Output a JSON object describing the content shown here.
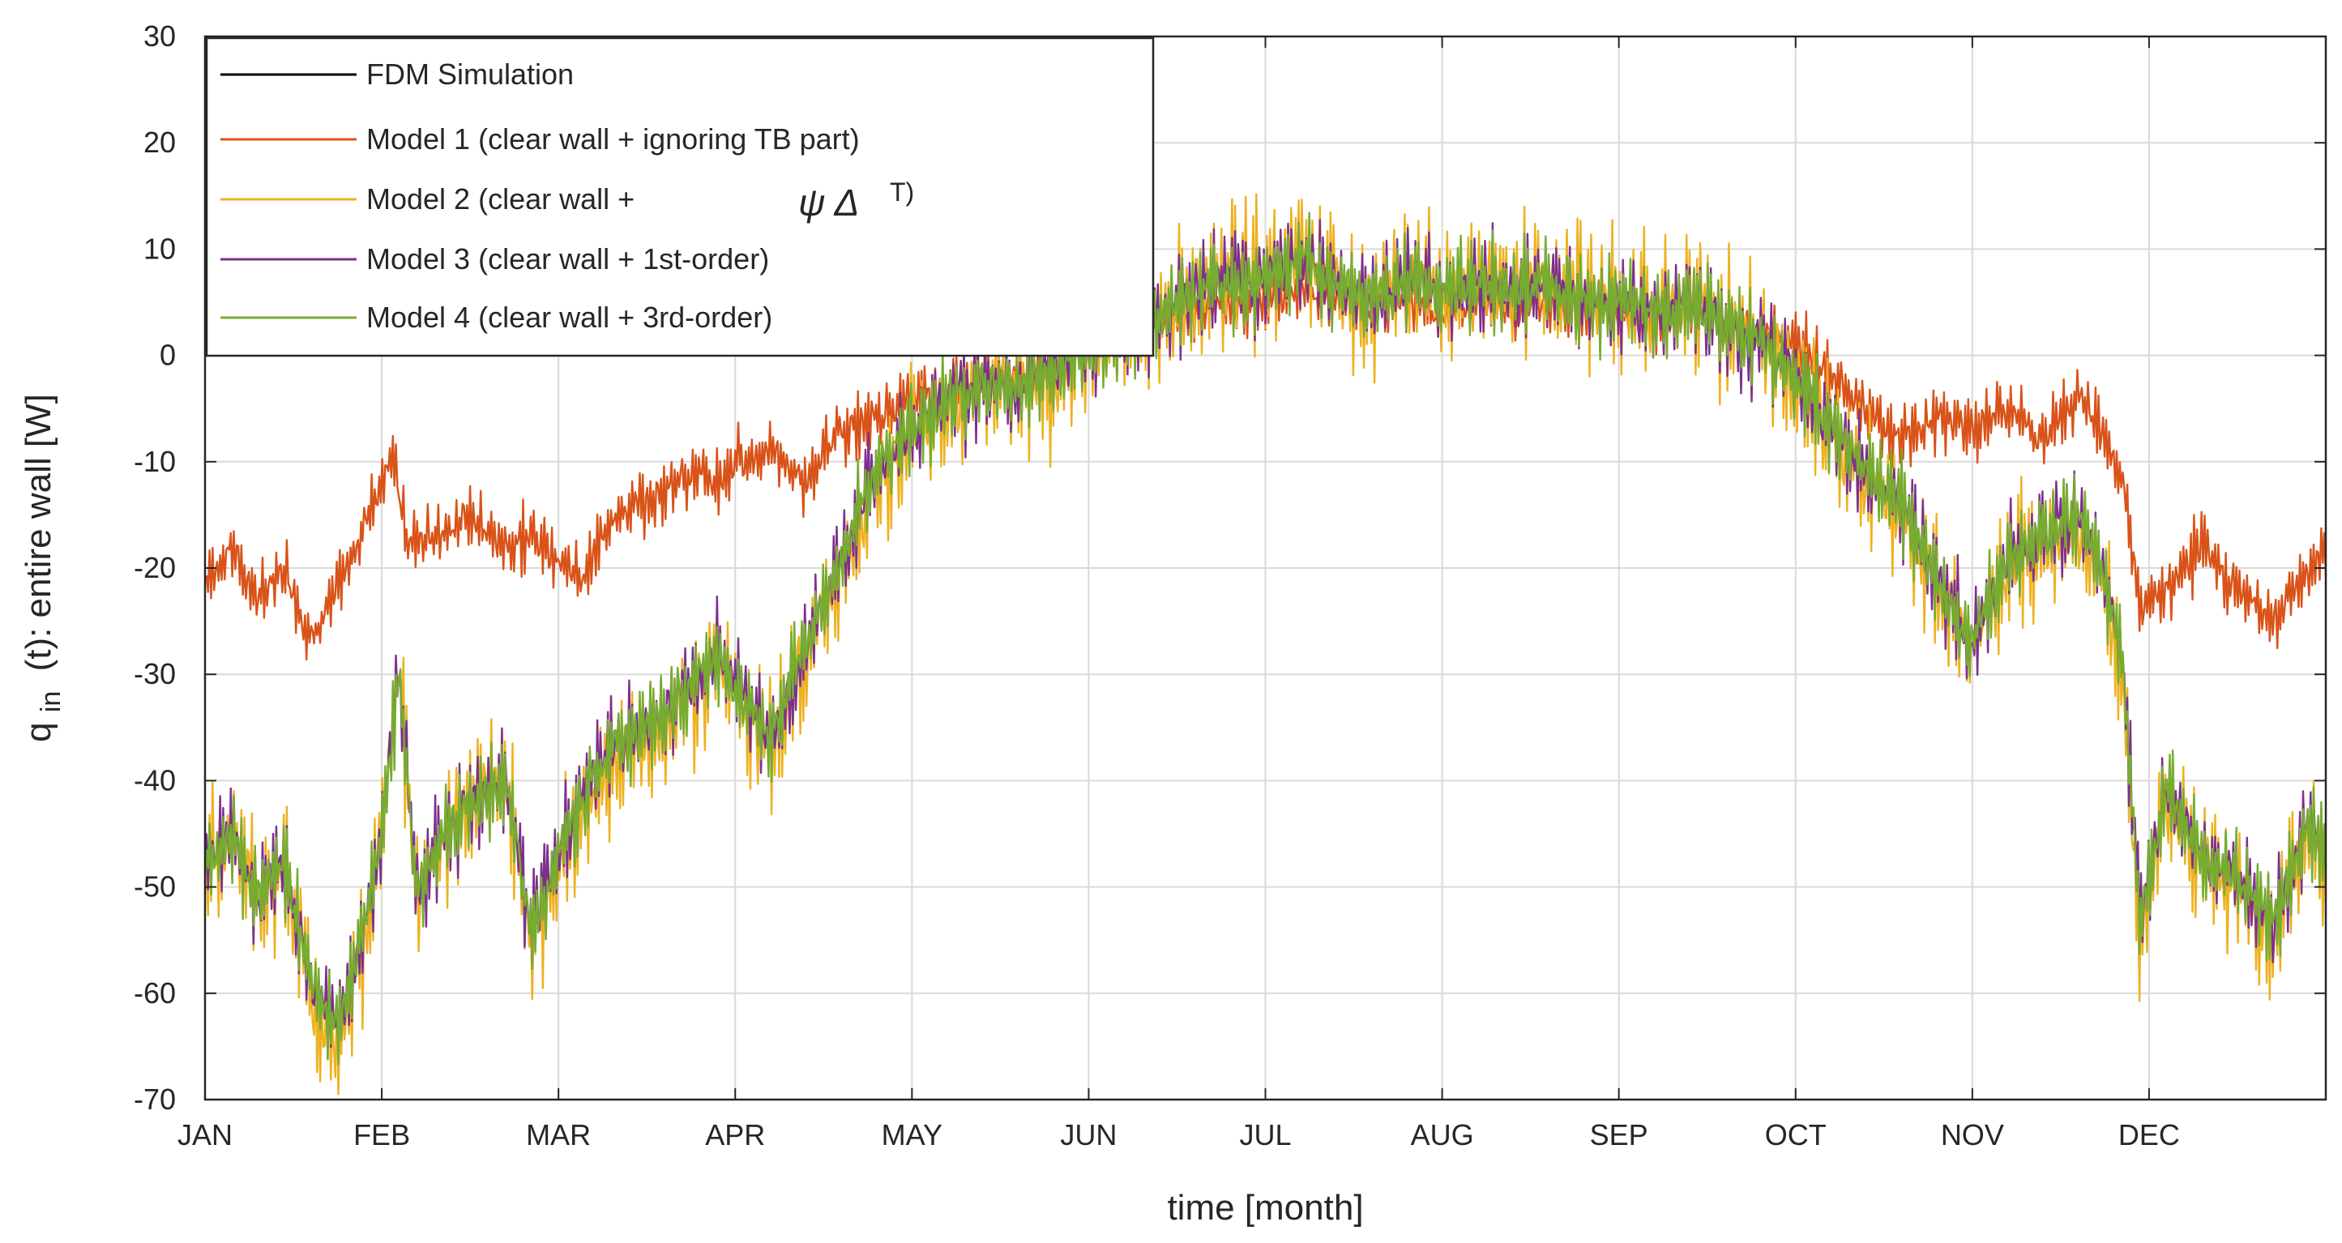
{
  "chart_data": {
    "type": "line",
    "xlabel": "time [month]",
    "ylabel": {
      "prefix": "q",
      "subscript": "in",
      "suffix": "(t): entire wall [W]"
    },
    "ylim": [
      -70,
      30
    ],
    "yticks": [
      30,
      20,
      10,
      0,
      -10,
      -20,
      -30,
      -40,
      -50,
      -60,
      -70
    ],
    "xlim": [
      0,
      12
    ],
    "xticks": [
      {
        "label": "JAN",
        "x": 0
      },
      {
        "label": "FEB",
        "x": 1
      },
      {
        "label": "MAR",
        "x": 2
      },
      {
        "label": "APR",
        "x": 3
      },
      {
        "label": "MAY",
        "x": 4
      },
      {
        "label": "JUN",
        "x": 5
      },
      {
        "label": "JUL",
        "x": 6
      },
      {
        "label": "AUG",
        "x": 7
      },
      {
        "label": "SEP",
        "x": 8
      },
      {
        "label": "OCT",
        "x": 9
      },
      {
        "label": "NOV",
        "x": 10
      },
      {
        "label": "DEC",
        "x": 11
      }
    ],
    "grid": true,
    "legend_position": "top-left",
    "legend": [
      {
        "label": "FDM Simulation",
        "color": "#000000"
      },
      {
        "label": "Model 1 (clear wall + ignoring TB part)",
        "color": "#D95319"
      },
      {
        "label": "Model 2 (clear wall +",
        "color": "#EDB120",
        "math": "ψ Δ",
        "sup": "T)"
      },
      {
        "label": "Model 3 (clear wall + 1st-order)",
        "color": "#7E2F8E"
      },
      {
        "label": "Model 4 (clear wall + 3rd-order)",
        "color": "#77AC30"
      }
    ],
    "series": [
      {
        "name": "Model 1 (clear wall + ignoring TB part)",
        "color": "#D95319",
        "x": [
          0,
          0.15,
          0.3,
          0.45,
          0.6,
          0.75,
          0.9,
          1.0,
          1.05,
          1.15,
          1.3,
          1.5,
          1.7,
          1.85,
          2.0,
          2.15,
          2.3,
          2.5,
          2.7,
          2.9,
          3.0,
          3.2,
          3.4,
          3.6,
          3.8,
          4.0,
          4.2,
          4.4,
          4.6,
          4.8,
          5.0,
          5.2,
          5.4,
          5.6,
          5.8,
          6.0,
          6.2,
          6.4,
          6.6,
          6.8,
          7.0,
          7.2,
          7.4,
          7.6,
          7.8,
          8.0,
          8.2,
          8.4,
          8.6,
          8.8,
          9.0,
          9.2,
          9.4,
          9.6,
          9.8,
          10.0,
          10.2,
          10.4,
          10.5,
          10.6,
          10.75,
          10.85,
          10.95,
          11.1,
          11.3,
          11.5,
          11.7,
          11.9,
          12.0
        ],
        "y": [
          -21,
          -18,
          -23,
          -20,
          -27,
          -22,
          -16,
          -12,
          -9,
          -18,
          -17,
          -15,
          -18,
          -17,
          -19,
          -21,
          -15,
          -14,
          -11,
          -12,
          -10,
          -9,
          -12,
          -7,
          -6,
          -4,
          -3,
          -2,
          -2,
          -1,
          1,
          2,
          3,
          4,
          5,
          5,
          6,
          5,
          4,
          5,
          4,
          5,
          4,
          5,
          4,
          4,
          3,
          4,
          3,
          2,
          1,
          -2,
          -5,
          -8,
          -6,
          -7,
          -5,
          -8,
          -6,
          -4,
          -7,
          -12,
          -24,
          -22,
          -18,
          -22,
          -25,
          -20,
          -19
        ]
      },
      {
        "name": "Model 2 (clear wall + ψ ΔT)",
        "color": "#EDB120",
        "x": [
          0,
          0.15,
          0.3,
          0.45,
          0.6,
          0.75,
          0.9,
          1.0,
          1.1,
          1.2,
          1.35,
          1.5,
          1.7,
          1.85,
          2.0,
          2.15,
          2.3,
          2.5,
          2.7,
          2.9,
          3.0,
          3.2,
          3.4,
          3.6,
          3.8,
          4.0,
          4.2,
          4.4,
          4.6,
          4.8,
          5.0,
          5.2,
          5.4,
          5.6,
          5.8,
          6.0,
          6.2,
          6.4,
          6.6,
          6.8,
          7.0,
          7.2,
          7.4,
          7.6,
          7.8,
          8.0,
          8.2,
          8.4,
          8.6,
          8.8,
          9.0,
          9.2,
          9.4,
          9.6,
          9.8,
          10.0,
          10.2,
          10.4,
          10.6,
          10.75,
          10.85,
          10.95,
          11.1,
          11.3,
          11.5,
          11.7,
          11.9,
          12.0
        ],
        "y": [
          -48,
          -45,
          -52,
          -48,
          -60,
          -65,
          -55,
          -45,
          -30,
          -52,
          -45,
          -42,
          -40,
          -55,
          -48,
          -42,
          -38,
          -36,
          -33,
          -28,
          -32,
          -37,
          -28,
          -20,
          -12,
          -8,
          -5,
          -3,
          -4,
          -2,
          1,
          2,
          4,
          6,
          8,
          8,
          10,
          7,
          5,
          8,
          6,
          7,
          6,
          7,
          6,
          5,
          4,
          6,
          3,
          1,
          -2,
          -8,
          -12,
          -15,
          -22,
          -28,
          -20,
          -18,
          -16,
          -22,
          -30,
          -55,
          -42,
          -48,
          -50,
          -55,
          -45,
          -48
        ]
      },
      {
        "name": "Model 3 (clear wall + 1st-order)",
        "color": "#7E2F8E",
        "x": [
          0,
          0.15,
          0.3,
          0.45,
          0.6,
          0.75,
          0.9,
          1.0,
          1.1,
          1.2,
          1.35,
          1.5,
          1.7,
          1.85,
          2.0,
          2.15,
          2.3,
          2.5,
          2.7,
          2.9,
          3.0,
          3.2,
          3.4,
          3.6,
          3.8,
          4.0,
          4.2,
          4.4,
          4.6,
          4.8,
          5.0,
          5.2,
          5.4,
          5.6,
          5.8,
          6.0,
          6.2,
          6.4,
          6.6,
          6.8,
          7.0,
          7.2,
          7.4,
          7.6,
          7.8,
          8.0,
          8.2,
          8.4,
          8.6,
          8.8,
          9.0,
          9.2,
          9.4,
          9.6,
          9.8,
          10.0,
          10.2,
          10.4,
          10.6,
          10.75,
          10.85,
          10.95,
          11.1,
          11.3,
          11.5,
          11.7,
          11.9,
          12.0
        ],
        "y": [
          -48,
          -45,
          -51,
          -48,
          -59,
          -63,
          -54,
          -45,
          -30,
          -51,
          -45,
          -42,
          -40,
          -54,
          -47,
          -41,
          -37,
          -35,
          -32,
          -28,
          -31,
          -36,
          -27,
          -19,
          -11,
          -7,
          -4,
          -3,
          -3,
          -1,
          1,
          2,
          4,
          6,
          7,
          7,
          9,
          7,
          5,
          7,
          6,
          7,
          6,
          7,
          5,
          5,
          4,
          5,
          3,
          1,
          -2,
          -7,
          -11,
          -14,
          -21,
          -27,
          -19,
          -17,
          -15,
          -21,
          -29,
          -53,
          -41,
          -47,
          -49,
          -54,
          -44,
          -47
        ]
      },
      {
        "name": "Model 4 (clear wall + 3rd-order)",
        "color": "#77AC30",
        "x": [
          0,
          0.15,
          0.3,
          0.45,
          0.6,
          0.75,
          0.9,
          1.0,
          1.1,
          1.2,
          1.35,
          1.5,
          1.7,
          1.85,
          2.0,
          2.15,
          2.3,
          2.5,
          2.7,
          2.9,
          3.0,
          3.2,
          3.4,
          3.6,
          3.8,
          4.0,
          4.2,
          4.4,
          4.6,
          4.8,
          5.0,
          5.2,
          5.4,
          5.6,
          5.8,
          6.0,
          6.2,
          6.4,
          6.6,
          6.8,
          7.0,
          7.2,
          7.4,
          7.6,
          7.8,
          8.0,
          8.2,
          8.4,
          8.6,
          8.8,
          9.0,
          9.2,
          9.4,
          9.6,
          9.8,
          10.0,
          10.2,
          10.4,
          10.6,
          10.75,
          10.85,
          10.95,
          11.1,
          11.3,
          11.5,
          11.7,
          11.9,
          12.0
        ],
        "y": [
          -48,
          -45,
          -51,
          -48,
          -59,
          -63,
          -54,
          -45,
          -30,
          -51,
          -45,
          -42,
          -40,
          -54,
          -47,
          -41,
          -37,
          -35,
          -32,
          -28,
          -31,
          -36,
          -27,
          -19,
          -11,
          -7,
          -4,
          -3,
          -3,
          -1,
          1,
          2,
          4,
          6,
          7,
          7,
          9,
          7,
          5,
          7,
          6,
          7,
          6,
          7,
          5,
          5,
          4,
          5,
          3,
          1,
          -2,
          -7,
          -11,
          -14,
          -21,
          -27,
          -19,
          -17,
          -15,
          -21,
          -29,
          -53,
          -41,
          -47,
          -49,
          -54,
          -44,
          -47
        ]
      }
    ]
  }
}
